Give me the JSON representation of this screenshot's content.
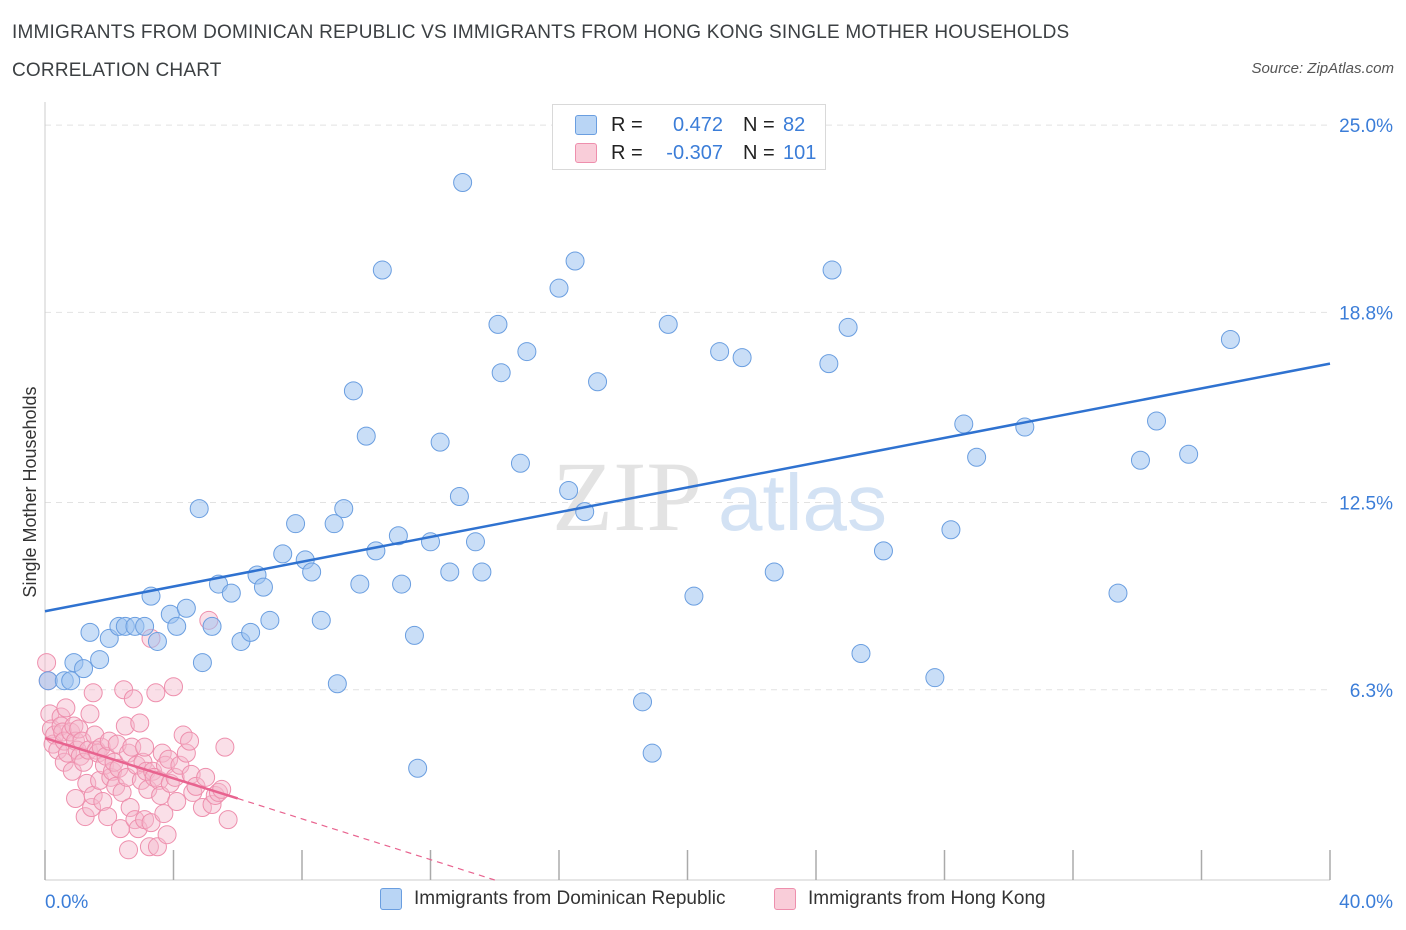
{
  "title": "IMMIGRANTS FROM DOMINICAN REPUBLIC VS IMMIGRANTS FROM HONG KONG SINGLE MOTHER HOUSEHOLDS CORRELATION CHART",
  "source": "Source: ZipAtlas.com",
  "watermark": {
    "zip": "ZIP",
    "atlas": "atlas"
  },
  "legend": {
    "r_label": "R =",
    "n_label": "N =",
    "rows": [
      {
        "r": "0.472",
        "n": "82",
        "color": "#9dc3f0"
      },
      {
        "r": "-0.307",
        "n": "101",
        "color": "#f5b8cb"
      }
    ]
  },
  "colors": {
    "blue_fill": "#9dc3f0",
    "blue_edge": "#6a9ee0",
    "blue_line": "#2f72d0",
    "pink_fill": "#f5b8cb",
    "pink_edge": "#ee8fad",
    "pink_line": "#e8638f",
    "axis_label": "#3b7dd8"
  },
  "chart_data": {
    "type": "scatter",
    "title": "IMMIGRANTS FROM DOMINICAN REPUBLIC VS IMMIGRANTS FROM HONG KONG SINGLE MOTHER HOUSEHOLDS CORRELATION CHART",
    "ylabel": "Single Mother Households",
    "xlabel": "",
    "xlim": [
      0,
      40
    ],
    "ylim": [
      0,
      25.5
    ],
    "x_tick_labels": [
      {
        "value": 0,
        "label": "0.0%"
      },
      {
        "value": 40,
        "label": "40.0%"
      }
    ],
    "y_tick_labels": [
      {
        "value": 6.3,
        "label": "6.3%"
      },
      {
        "value": 12.5,
        "label": "12.5%"
      },
      {
        "value": 18.8,
        "label": "18.8%"
      },
      {
        "value": 25.0,
        "label": "25.0%"
      }
    ],
    "series": [
      {
        "name": "Immigrants from Dominican Republic",
        "color": "#9dc3f0",
        "r": 0.472,
        "n": 82,
        "trend": {
          "x": [
            0,
            40
          ],
          "y": [
            8.9,
            17.1
          ]
        },
        "points": [
          [
            0.1,
            6.6
          ],
          [
            0.6,
            6.6
          ],
          [
            0.8,
            6.6
          ],
          [
            0.9,
            7.2
          ],
          [
            1.2,
            7.0
          ],
          [
            1.4,
            8.2
          ],
          [
            1.7,
            7.3
          ],
          [
            2.0,
            8.0
          ],
          [
            2.3,
            8.4
          ],
          [
            2.5,
            8.4
          ],
          [
            2.8,
            8.4
          ],
          [
            3.1,
            8.4
          ],
          [
            3.3,
            9.4
          ],
          [
            3.5,
            7.9
          ],
          [
            3.9,
            8.8
          ],
          [
            4.1,
            8.4
          ],
          [
            4.4,
            9.0
          ],
          [
            4.8,
            12.3
          ],
          [
            4.9,
            7.2
          ],
          [
            5.2,
            8.4
          ],
          [
            5.4,
            9.8
          ],
          [
            5.8,
            9.5
          ],
          [
            6.1,
            7.9
          ],
          [
            6.4,
            8.2
          ],
          [
            6.6,
            10.1
          ],
          [
            6.8,
            9.7
          ],
          [
            7.0,
            8.6
          ],
          [
            7.4,
            10.8
          ],
          [
            7.8,
            11.8
          ],
          [
            8.1,
            10.6
          ],
          [
            8.3,
            10.2
          ],
          [
            8.6,
            8.6
          ],
          [
            9.0,
            11.8
          ],
          [
            9.1,
            6.5
          ],
          [
            9.3,
            12.3
          ],
          [
            9.6,
            16.2
          ],
          [
            9.8,
            9.8
          ],
          [
            10.0,
            14.7
          ],
          [
            10.3,
            10.9
          ],
          [
            10.5,
            20.2
          ],
          [
            11.0,
            11.4
          ],
          [
            11.1,
            9.8
          ],
          [
            11.5,
            8.1
          ],
          [
            11.6,
            3.7
          ],
          [
            12.0,
            11.2
          ],
          [
            12.3,
            14.5
          ],
          [
            12.6,
            10.2
          ],
          [
            12.9,
            12.7
          ],
          [
            13.0,
            23.1
          ],
          [
            13.4,
            11.2
          ],
          [
            13.6,
            10.2
          ],
          [
            14.1,
            18.4
          ],
          [
            14.2,
            16.8
          ],
          [
            14.8,
            13.8
          ],
          [
            15.0,
            17.5
          ],
          [
            16.0,
            19.6
          ],
          [
            16.3,
            12.9
          ],
          [
            16.5,
            20.5
          ],
          [
            16.8,
            12.2
          ],
          [
            17.2,
            16.5
          ],
          [
            18.6,
            5.9
          ],
          [
            18.9,
            4.2
          ],
          [
            19.4,
            18.4
          ],
          [
            20.2,
            9.4
          ],
          [
            21.0,
            17.5
          ],
          [
            21.7,
            17.3
          ],
          [
            22.7,
            10.2
          ],
          [
            24.4,
            17.1
          ],
          [
            24.5,
            20.2
          ],
          [
            25.0,
            18.3
          ],
          [
            25.4,
            7.5
          ],
          [
            26.1,
            10.9
          ],
          [
            27.7,
            6.7
          ],
          [
            28.2,
            11.6
          ],
          [
            28.6,
            15.1
          ],
          [
            29.0,
            14.0
          ],
          [
            30.5,
            15.0
          ],
          [
            33.4,
            9.5
          ],
          [
            34.1,
            13.9
          ],
          [
            34.6,
            15.2
          ],
          [
            35.6,
            14.1
          ],
          [
            36.9,
            17.9
          ]
        ]
      },
      {
        "name": "Immigrants from Hong Kong",
        "color": "#f5b8cb",
        "r": -0.307,
        "n": 101,
        "trend": {
          "x": [
            0,
            6.0
          ],
          "y": [
            4.7,
            2.7
          ]
        },
        "trend_extension": {
          "x": [
            6.0,
            14.0
          ],
          "y": [
            2.7,
            0.0
          ]
        },
        "points": [
          [
            0.05,
            7.2
          ],
          [
            0.1,
            6.6
          ],
          [
            0.15,
            5.5
          ],
          [
            0.2,
            5.0
          ],
          [
            0.25,
            4.5
          ],
          [
            0.3,
            4.8
          ],
          [
            0.4,
            4.3
          ],
          [
            0.5,
            5.4
          ],
          [
            0.5,
            5.1
          ],
          [
            0.55,
            4.9
          ],
          [
            0.6,
            4.6
          ],
          [
            0.6,
            3.9
          ],
          [
            0.65,
            5.7
          ],
          [
            0.7,
            4.2
          ],
          [
            0.8,
            4.9
          ],
          [
            0.85,
            3.6
          ],
          [
            0.9,
            5.1
          ],
          [
            0.95,
            4.6
          ],
          [
            0.95,
            2.7
          ],
          [
            1.0,
            4.3
          ],
          [
            1.05,
            5.0
          ],
          [
            1.1,
            4.1
          ],
          [
            1.15,
            4.6
          ],
          [
            1.2,
            3.9
          ],
          [
            1.25,
            2.1
          ],
          [
            1.3,
            3.2
          ],
          [
            1.35,
            4.3
          ],
          [
            1.4,
            5.5
          ],
          [
            1.45,
            2.4
          ],
          [
            1.5,
            2.8
          ],
          [
            1.5,
            6.2
          ],
          [
            1.55,
            4.8
          ],
          [
            1.6,
            4.3
          ],
          [
            1.65,
            4.2
          ],
          [
            1.7,
            3.3
          ],
          [
            1.75,
            4.4
          ],
          [
            1.8,
            2.6
          ],
          [
            1.85,
            3.8
          ],
          [
            1.9,
            4.1
          ],
          [
            1.95,
            2.1
          ],
          [
            2.0,
            4.6
          ],
          [
            2.05,
            3.4
          ],
          [
            2.1,
            3.6
          ],
          [
            2.15,
            3.9
          ],
          [
            2.2,
            3.1
          ],
          [
            2.25,
            4.5
          ],
          [
            2.3,
            3.7
          ],
          [
            2.35,
            1.7
          ],
          [
            2.4,
            2.9
          ],
          [
            2.45,
            6.3
          ],
          [
            2.5,
            5.1
          ],
          [
            2.55,
            3.4
          ],
          [
            2.6,
            4.2
          ],
          [
            2.6,
            1.0
          ],
          [
            2.65,
            2.4
          ],
          [
            2.7,
            4.4
          ],
          [
            2.75,
            6.0
          ],
          [
            2.8,
            2.0
          ],
          [
            2.85,
            3.8
          ],
          [
            2.9,
            1.7
          ],
          [
            2.95,
            5.2
          ],
          [
            3.0,
            3.3
          ],
          [
            3.05,
            3.9
          ],
          [
            3.1,
            4.4
          ],
          [
            3.1,
            2.0
          ],
          [
            3.15,
            3.6
          ],
          [
            3.2,
            3.0
          ],
          [
            3.25,
            1.1
          ],
          [
            3.3,
            1.9
          ],
          [
            3.3,
            8.0
          ],
          [
            3.35,
            3.6
          ],
          [
            3.4,
            3.4
          ],
          [
            3.45,
            6.2
          ],
          [
            3.5,
            1.1
          ],
          [
            3.55,
            3.3
          ],
          [
            3.6,
            2.8
          ],
          [
            3.65,
            4.2
          ],
          [
            3.7,
            2.2
          ],
          [
            3.75,
            3.8
          ],
          [
            3.8,
            1.5
          ],
          [
            3.85,
            4.0
          ],
          [
            3.9,
            3.2
          ],
          [
            4.0,
            6.4
          ],
          [
            4.05,
            3.4
          ],
          [
            4.1,
            2.6
          ],
          [
            4.2,
            3.8
          ],
          [
            4.3,
            4.8
          ],
          [
            4.4,
            4.2
          ],
          [
            4.5,
            4.6
          ],
          [
            4.55,
            3.5
          ],
          [
            4.6,
            2.9
          ],
          [
            4.7,
            3.1
          ],
          [
            4.9,
            2.4
          ],
          [
            5.0,
            3.4
          ],
          [
            5.1,
            8.6
          ],
          [
            5.2,
            2.5
          ],
          [
            5.3,
            2.8
          ],
          [
            5.4,
            2.9
          ],
          [
            5.5,
            3.0
          ],
          [
            5.6,
            4.4
          ],
          [
            5.7,
            2.0
          ]
        ]
      }
    ]
  },
  "bottom_legend": [
    {
      "label": "Immigrants from Dominican Republic",
      "color": "#9dc3f0"
    },
    {
      "label": "Immigrants from Hong Kong",
      "color": "#f5b8cb"
    }
  ]
}
